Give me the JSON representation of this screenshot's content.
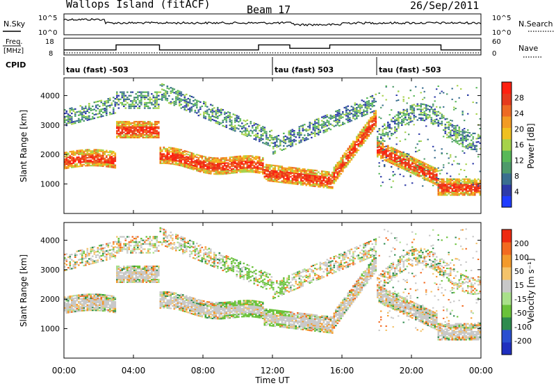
{
  "header": {
    "title": "Wallops Island (fitACF)",
    "beam": "Beam 17",
    "date": "26/Sep/2011"
  },
  "noise_panel": {
    "left_label": "N.Sky",
    "right_label": "N.Search",
    "ticks": [
      "10^5",
      "10^0"
    ]
  },
  "freq_panel": {
    "left_label_1": "Freq.",
    "left_label_2": "[MHz]",
    "right_label": "Nave",
    "left_ticks": [
      "18",
      "8"
    ],
    "right_ticks": [
      "60",
      "0"
    ],
    "freq_steps": [
      {
        "start_h": 0.0,
        "end_h": 3.0,
        "mhz": 11
      },
      {
        "start_h": 3.0,
        "end_h": 5.5,
        "mhz": 14
      },
      {
        "start_h": 5.5,
        "end_h": 11.2,
        "mhz": 11
      },
      {
        "start_h": 11.2,
        "end_h": 13.0,
        "mhz": 14
      },
      {
        "start_h": 13.0,
        "end_h": 15.3,
        "mhz": 12
      },
      {
        "start_h": 15.3,
        "end_h": 21.7,
        "mhz": 14
      },
      {
        "start_h": 21.7,
        "end_h": 24.0,
        "mhz": 11
      }
    ]
  },
  "cpid": {
    "label": "CPID",
    "segments": [
      {
        "start_h": 0.0,
        "text": "tau (fast) -503"
      },
      {
        "start_h": 12.0,
        "text": "tau (fast) 503"
      },
      {
        "start_h": 18.0,
        "text": "tau (fast) -503"
      }
    ]
  },
  "chart_data": [
    {
      "type": "heatmap",
      "name": "power",
      "ylabel": "Slant Range [km]",
      "ylim": [
        0,
        4600
      ],
      "y_ticks": [
        "1000",
        "2000",
        "3000",
        "4000"
      ],
      "colorbar_label": "Power [dB]",
      "colorbar_ticks": [
        "28",
        "24",
        "20",
        "16",
        "12",
        "8",
        "4"
      ],
      "colors": [
        "#1f3cff",
        "#2d3aa8",
        "#3a6f8f",
        "#4d9a6a",
        "#58b858",
        "#a6d24a",
        "#f0c020",
        "#f29b24",
        "#ee6a24",
        "#e63a1d",
        "#ff2010"
      ]
    },
    {
      "type": "heatmap",
      "name": "velocity",
      "ylabel": "Slant Range [km]",
      "ylim": [
        0,
        4600
      ],
      "y_ticks": [
        "1000",
        "2000",
        "3000",
        "4000"
      ],
      "colorbar_label": "Velocity [m s⁻¹]",
      "colorbar_ticks": [
        "200",
        "100",
        "50",
        "15",
        "-15",
        "-50",
        "-100",
        "-200"
      ],
      "colors": [
        "#1f2fbf",
        "#2a4fd0",
        "#2e8b4e",
        "#6ac23a",
        "#a9e08a",
        "#c8c8c8",
        "#f4c36a",
        "#f39a2c",
        "#f36a20",
        "#ee2a10"
      ]
    }
  ],
  "x_axis": {
    "label": "Time UT",
    "ticks": [
      "00:00",
      "04:00",
      "08:00",
      "12:00",
      "16:00",
      "20:00",
      "00:00"
    ]
  },
  "colors": {
    "gray_scatter": "#c8c8c8",
    "axis": "#000000"
  }
}
